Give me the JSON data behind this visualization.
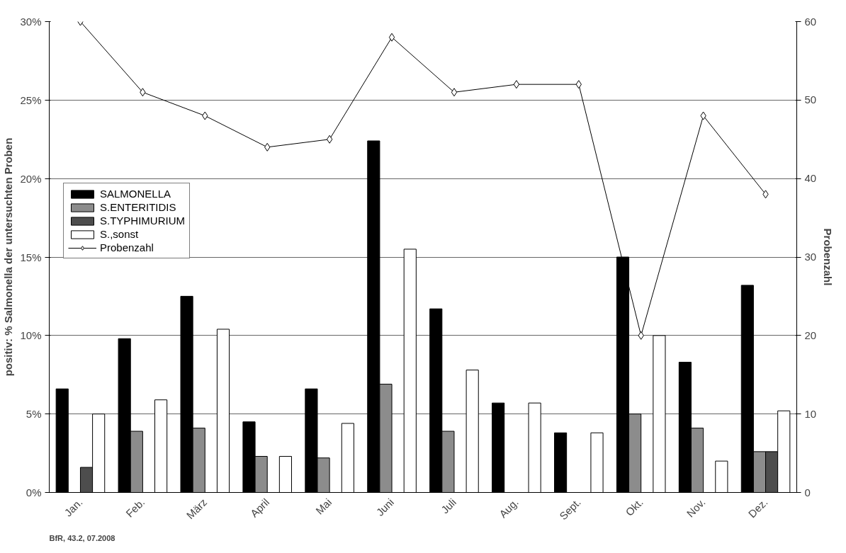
{
  "chart_data": {
    "type": "bar",
    "categories": [
      "Jan.",
      "Feb.",
      "März",
      "April",
      "Mai",
      "Juni",
      "Juli",
      "Aug.",
      "Sept.",
      "Okt.",
      "Nov.",
      "Dez."
    ],
    "series": [
      {
        "name": "SALMONELLA",
        "color": "#000000",
        "values": [
          6.6,
          9.8,
          12.5,
          4.5,
          6.6,
          22.4,
          11.7,
          5.7,
          3.8,
          15.0,
          8.3,
          13.2
        ]
      },
      {
        "name": "S.ENTERITIDIS",
        "color": "#8c8c8c",
        "values": [
          null,
          3.9,
          4.1,
          2.3,
          2.2,
          6.9,
          3.9,
          null,
          null,
          5.0,
          4.1,
          2.6
        ]
      },
      {
        "name": "S.TYPHIMURIUM",
        "color": "#4d4d4d",
        "values": [
          1.6,
          null,
          null,
          null,
          null,
          null,
          null,
          null,
          null,
          null,
          null,
          2.6
        ]
      },
      {
        "name": "S.,sonst",
        "color": "#ffffff",
        "values": [
          5.0,
          5.9,
          10.4,
          2.3,
          4.4,
          15.5,
          7.8,
          5.7,
          3.8,
          10.0,
          2.0,
          5.2
        ]
      },
      {
        "name": "Probenzahl",
        "type": "line",
        "axis": "y2",
        "marker": "diamond",
        "color": "#000000",
        "values": [
          60,
          51,
          48,
          44,
          45,
          58,
          51,
          52,
          52,
          20,
          48,
          38
        ]
      }
    ],
    "ylabel": "positiv: % Salmonella der untersuchten Proben",
    "y2label": "Probenzahl",
    "ylim": [
      0,
      30
    ],
    "yticks": [
      {
        "value": 0,
        "label": "0%"
      },
      {
        "value": 5,
        "label": "5%"
      },
      {
        "value": 10,
        "label": "10%"
      },
      {
        "value": 15,
        "label": "15%"
      },
      {
        "value": 20,
        "label": "20%"
      },
      {
        "value": 25,
        "label": "25%"
      },
      {
        "value": 30,
        "label": "30%"
      }
    ],
    "y2lim": [
      0,
      60
    ],
    "y2ticks": [
      0,
      10,
      20,
      30,
      40,
      50,
      60
    ],
    "grid": "y",
    "legend": "left",
    "annotations": [
      "BfR, 43.2, 07.2008"
    ]
  }
}
